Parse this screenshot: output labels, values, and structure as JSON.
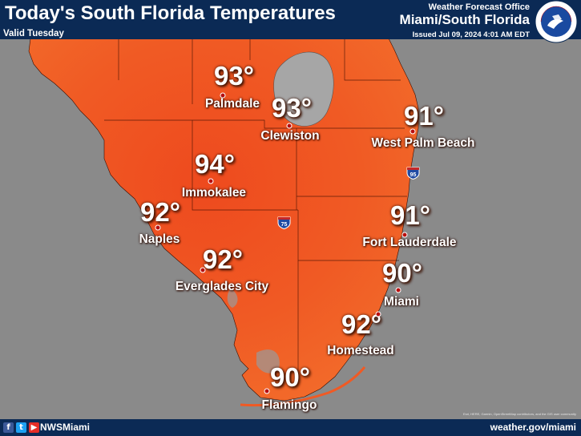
{
  "header": {
    "title": "Today's South Florida Temperatures",
    "valid": "Valid Tuesday",
    "office_line": "Weather Forecast Office",
    "office_name": "Miami/South Florida",
    "issued": "Issued Jul 09, 2024 4:01 AM EDT",
    "logo_text": "NATIONAL WEATHER SERVICE"
  },
  "colors": {
    "background": "#8a8a8a",
    "land_warm": "#f05a24",
    "land_hot": "#e8401c",
    "water_lake": "#a6a6a6",
    "banner": "#0b2a55",
    "text": "#ffffff"
  },
  "cities": [
    {
      "name": "Palmdale",
      "temp": "93°"
    },
    {
      "name": "Clewiston",
      "temp": "93°"
    },
    {
      "name": "West Palm Beach",
      "temp": "91°"
    },
    {
      "name": "Immokalee",
      "temp": "94°"
    },
    {
      "name": "Naples",
      "temp": "92°"
    },
    {
      "name": "Fort Lauderdale",
      "temp": "91°"
    },
    {
      "name": "Everglades City",
      "temp": "92°"
    },
    {
      "name": "Miami",
      "temp": "90°"
    },
    {
      "name": "Homestead",
      "temp": "92°"
    },
    {
      "name": "Flamingo",
      "temp": "90°"
    }
  ],
  "highways": [
    "95",
    "75"
  ],
  "footer": {
    "social_icons": [
      "facebook-icon",
      "twitter-icon",
      "youtube-icon"
    ],
    "handle": "NWSMiami",
    "website": "weather.gov/miami",
    "attribution": "Esri, HERE, Garmin, OpenStreetMap contributors, and the GIS user community"
  }
}
